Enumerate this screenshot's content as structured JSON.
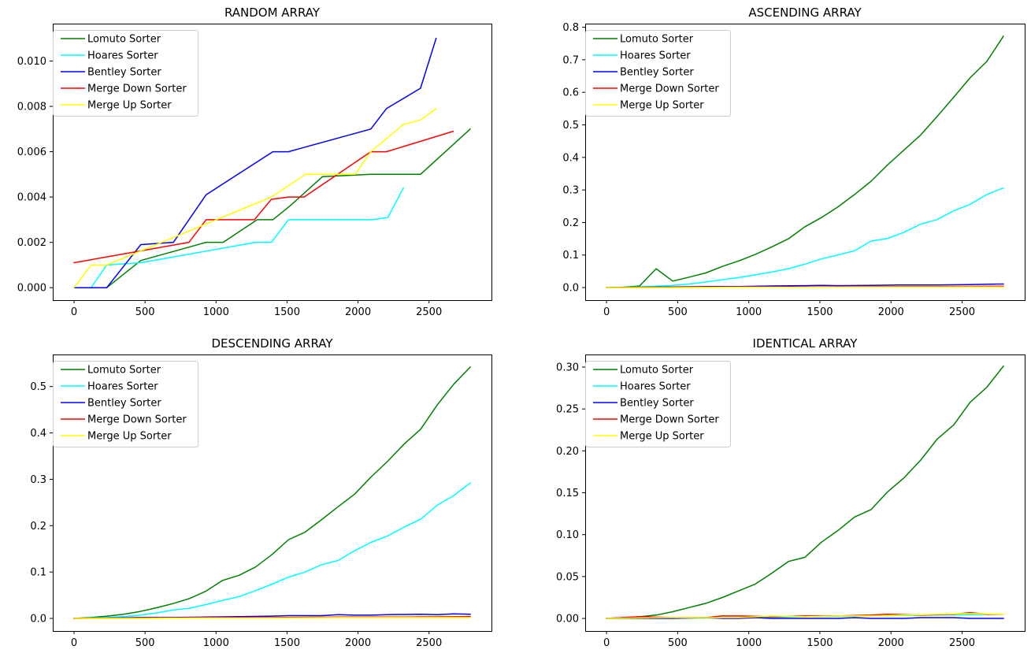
{
  "figure": {
    "background": "#ffffff"
  },
  "chart_data": [
    {
      "type": "line",
      "title": "RANDOM ARRAY",
      "xlabel": "",
      "ylabel": "",
      "xlim": [
        -150,
        2940
      ],
      "ylim": [
        -0.00055,
        0.01165
      ],
      "xticks": [
        0,
        500,
        1000,
        1500,
        2000,
        2500
      ],
      "xticklabels": [
        "0",
        "500",
        "1000",
        "1500",
        "2000",
        "2500"
      ],
      "yticks": [
        0,
        0.002,
        0.004,
        0.006,
        0.008,
        0.01
      ],
      "yticklabels": [
        "0.000",
        "0.002",
        "0.004",
        "0.006",
        "0.008",
        "0.010"
      ],
      "legend": "upper left",
      "grid": false,
      "series": [
        {
          "name": "Lomuto Sorter",
          "color": "#008000",
          "x": [
            0,
            230,
            470,
            930,
            1050,
            1290,
            1400,
            1520,
            1750,
            2090,
            2440,
            2790
          ],
          "y": [
            0,
            0,
            0.0012,
            0.002,
            0.002,
            0.003,
            0.003,
            0.0036,
            0.0049,
            0.005,
            0.005,
            0.007
          ]
        },
        {
          "name": "Hoares Sorter",
          "color": "#00ffff",
          "x": [
            0,
            120,
            230,
            470,
            1280,
            1390,
            1510,
            2100,
            2210,
            2320
          ],
          "y": [
            0,
            0,
            0.001,
            0.0011,
            0.002,
            0.002,
            0.003,
            0.003,
            0.0031,
            0.0044
          ]
        },
        {
          "name": "Bentley Sorter",
          "color": "#0000ff",
          "x": [
            0,
            230,
            470,
            700,
            930,
            1400,
            1510,
            2090,
            2200,
            2440,
            2550
          ],
          "y": [
            0,
            0,
            0.0019,
            0.002,
            0.0041,
            0.006,
            0.006,
            0.007,
            0.0079,
            0.0088,
            0.011
          ]
        },
        {
          "name": "Merge Down Sorter",
          "color": "#ff0000",
          "x": [
            0,
            810,
            930,
            1270,
            1390,
            1510,
            1620,
            2090,
            2200,
            2670
          ],
          "y": [
            0.0011,
            0.002,
            0.003,
            0.003,
            0.0039,
            0.004,
            0.004,
            0.006,
            0.006,
            0.0069
          ]
        },
        {
          "name": "Merge Up Sorter",
          "color": "#ffff00",
          "x": [
            0,
            120,
            230,
            1390,
            1630,
            1980,
            2090,
            2320,
            2440,
            2550
          ],
          "y": [
            0,
            0.001,
            0.001,
            0.004,
            0.005,
            0.005,
            0.006,
            0.0072,
            0.0074,
            0.0079
          ]
        }
      ]
    },
    {
      "type": "line",
      "title": "ASCENDING ARRAY",
      "xlabel": "",
      "ylabel": "",
      "xlim": [
        -150,
        2940
      ],
      "ylim": [
        -0.0386,
        0.811
      ],
      "xticks": [
        0,
        500,
        1000,
        1500,
        2000,
        2500
      ],
      "xticklabels": [
        "0",
        "500",
        "1000",
        "1500",
        "2000",
        "2500"
      ],
      "yticks": [
        0,
        0.1,
        0.2,
        0.3,
        0.4,
        0.5,
        0.6,
        0.7,
        0.8
      ],
      "yticklabels": [
        "0.0",
        "0.1",
        "0.2",
        "0.3",
        "0.4",
        "0.5",
        "0.6",
        "0.7",
        "0.8"
      ],
      "legend": "upper left",
      "grid": false,
      "series": [
        {
          "name": "Lomuto Sorter",
          "color": "#008000",
          "x": [
            0,
            116,
            232,
            349,
            465,
            581,
            697,
            814,
            930,
            1046,
            1162,
            1279,
            1395,
            1511,
            1627,
            1744,
            1860,
            1976,
            2092,
            2209,
            2325,
            2441,
            2557,
            2674,
            2790
          ],
          "y": [
            0,
            0.001,
            0.005,
            0.058,
            0.02,
            0.032,
            0.045,
            0.065,
            0.082,
            0.102,
            0.125,
            0.15,
            0.187,
            0.215,
            0.248,
            0.286,
            0.327,
            0.377,
            0.423,
            0.469,
            0.526,
            0.585,
            0.645,
            0.695,
            0.772
          ]
        },
        {
          "name": "Hoares Sorter",
          "color": "#00ffff",
          "x": [
            0,
            116,
            232,
            349,
            465,
            581,
            697,
            814,
            930,
            1046,
            1162,
            1279,
            1395,
            1511,
            1627,
            1744,
            1860,
            1976,
            2092,
            2209,
            2325,
            2441,
            2557,
            2674,
            2790
          ],
          "y": [
            0,
            0.001,
            0.002,
            0.004,
            0.007,
            0.011,
            0.017,
            0.024,
            0.031,
            0.039,
            0.048,
            0.058,
            0.072,
            0.088,
            0.1,
            0.113,
            0.143,
            0.151,
            0.17,
            0.195,
            0.209,
            0.236,
            0.256,
            0.286,
            0.306
          ]
        },
        {
          "name": "Bentley Sorter",
          "color": "#0000ff",
          "x": [
            0,
            232,
            465,
            697,
            930,
            1162,
            1395,
            1511,
            1627,
            1860,
            2092,
            2325,
            2557,
            2790
          ],
          "y": [
            0,
            0.001,
            0.002,
            0.003,
            0.003,
            0.005,
            0.006,
            0.007,
            0.006,
            0.007,
            0.008,
            0.008,
            0.009,
            0.011
          ]
        },
        {
          "name": "Merge Down Sorter",
          "color": "#ff0000",
          "x": [
            0,
            465,
            930,
            1395,
            1860,
            2325,
            2790
          ],
          "y": [
            0,
            0.001,
            0.002,
            0.002,
            0.003,
            0.003,
            0.004
          ]
        },
        {
          "name": "Merge Up Sorter",
          "color": "#ffff00",
          "x": [
            0,
            465,
            930,
            1395,
            1860,
            2325,
            2790
          ],
          "y": [
            0,
            0,
            0.001,
            0.001,
            0.002,
            0.002,
            0.002
          ]
        }
      ]
    },
    {
      "type": "line",
      "title": "DESCENDING ARRAY",
      "xlabel": "",
      "ylabel": "",
      "xlim": [
        -150,
        2940
      ],
      "ylim": [
        -0.0271,
        0.5691
      ],
      "xticks": [
        0,
        500,
        1000,
        1500,
        2000,
        2500
      ],
      "xticklabels": [
        "0",
        "500",
        "1000",
        "1500",
        "2000",
        "2500"
      ],
      "yticks": [
        0,
        0.1,
        0.2,
        0.3,
        0.4,
        0.5
      ],
      "yticklabels": [
        "0.0",
        "0.1",
        "0.2",
        "0.3",
        "0.4",
        "0.5"
      ],
      "legend": "upper left",
      "grid": false,
      "series": [
        {
          "name": "Lomuto Sorter",
          "color": "#008000",
          "x": [
            0,
            116,
            232,
            349,
            465,
            581,
            697,
            814,
            930,
            1046,
            1162,
            1279,
            1395,
            1511,
            1627,
            1744,
            1860,
            1976,
            2092,
            2209,
            2325,
            2441,
            2557,
            2674,
            2790
          ],
          "y": [
            0,
            0.002,
            0.005,
            0.009,
            0.015,
            0.023,
            0.032,
            0.043,
            0.059,
            0.082,
            0.093,
            0.111,
            0.138,
            0.17,
            0.186,
            0.213,
            0.241,
            0.268,
            0.305,
            0.339,
            0.376,
            0.408,
            0.46,
            0.505,
            0.542
          ]
        },
        {
          "name": "Hoares Sorter",
          "color": "#00ffff",
          "x": [
            0,
            116,
            232,
            349,
            465,
            581,
            697,
            814,
            930,
            1046,
            1162,
            1279,
            1395,
            1511,
            1627,
            1744,
            1860,
            1976,
            2092,
            2209,
            2325,
            2441,
            2557,
            2674,
            2790
          ],
          "y": [
            0,
            0.001,
            0.002,
            0.004,
            0.007,
            0.012,
            0.018,
            0.022,
            0.03,
            0.039,
            0.047,
            0.06,
            0.074,
            0.089,
            0.1,
            0.116,
            0.125,
            0.146,
            0.164,
            0.178,
            0.197,
            0.214,
            0.244,
            0.265,
            0.292
          ]
        },
        {
          "name": "Bentley Sorter",
          "color": "#0000ff",
          "x": [
            0,
            232,
            465,
            697,
            930,
            1162,
            1395,
            1511,
            1744,
            1860,
            1976,
            2092,
            2209,
            2441,
            2557,
            2674,
            2790
          ],
          "y": [
            0,
            0.001,
            0.002,
            0.002,
            0.003,
            0.004,
            0.005,
            0.006,
            0.006,
            0.008,
            0.007,
            0.007,
            0.008,
            0.009,
            0.008,
            0.01,
            0.009
          ]
        },
        {
          "name": "Merge Down Sorter",
          "color": "#ff0000",
          "x": [
            0,
            465,
            930,
            1395,
            1860,
            2325,
            2790
          ],
          "y": [
            0,
            0.001,
            0.002,
            0.002,
            0.003,
            0.003,
            0.004
          ]
        },
        {
          "name": "Merge Up Sorter",
          "color": "#ffff00",
          "x": [
            0,
            465,
            930,
            1395,
            1860,
            2325,
            2790
          ],
          "y": [
            0,
            0,
            0.001,
            0.001,
            0.002,
            0.002,
            0.002
          ]
        }
      ]
    },
    {
      "type": "line",
      "title": "IDENTICAL ARRAY",
      "xlabel": "",
      "ylabel": "",
      "xlim": [
        -150,
        2940
      ],
      "ylim": [
        -0.015,
        0.315
      ],
      "xticks": [
        0,
        500,
        1000,
        1500,
        2000,
        2500
      ],
      "xticklabels": [
        "0",
        "500",
        "1000",
        "1500",
        "2000",
        "2500"
      ],
      "yticks": [
        0,
        0.05,
        0.1,
        0.15,
        0.2,
        0.25,
        0.3
      ],
      "yticklabels": [
        "0.00",
        "0.05",
        "0.10",
        "0.15",
        "0.20",
        "0.25",
        "0.30"
      ],
      "legend": "upper left",
      "grid": false,
      "series": [
        {
          "name": "Lomuto Sorter",
          "color": "#008000",
          "x": [
            0,
            116,
            232,
            349,
            465,
            581,
            697,
            814,
            930,
            1046,
            1162,
            1279,
            1395,
            1511,
            1627,
            1744,
            1860,
            1976,
            2092,
            2209,
            2325,
            2441,
            2557,
            2674,
            2790
          ],
          "y": [
            0,
            0.001,
            0.002,
            0.004,
            0.008,
            0.013,
            0.018,
            0.025,
            0.033,
            0.041,
            0.054,
            0.068,
            0.073,
            0.091,
            0.105,
            0.121,
            0.13,
            0.151,
            0.168,
            0.189,
            0.214,
            0.231,
            0.258,
            0.276,
            0.301
          ]
        },
        {
          "name": "Hoares Sorter",
          "color": "#00ffff",
          "x": [
            0,
            465,
            930,
            1395,
            1860,
            2325,
            2790
          ],
          "y": [
            0,
            0,
            0.001,
            0.002,
            0.003,
            0.004,
            0.005
          ]
        },
        {
          "name": "Bentley Sorter",
          "color": "#0000ff",
          "x": [
            0,
            232,
            465,
            697,
            814,
            930,
            1046,
            1162,
            1395,
            1511,
            1627,
            1744,
            1860,
            1976,
            2092,
            2209,
            2325,
            2441,
            2557,
            2674,
            2790
          ],
          "y": [
            0,
            0,
            0,
            0.001,
            0,
            0,
            0.001,
            0,
            0,
            0,
            0,
            0.001,
            0,
            0,
            0,
            0.001,
            0.001,
            0.001,
            0,
            0,
            0
          ]
        },
        {
          "name": "Merge Down Sorter",
          "color": "#ff0000",
          "x": [
            0,
            232,
            465,
            697,
            814,
            930,
            1162,
            1395,
            1627,
            1860,
            1976,
            2209,
            2441,
            2557,
            2674,
            2790
          ],
          "y": [
            0,
            0.002,
            0.001,
            0.001,
            0.003,
            0.003,
            0.002,
            0.003,
            0.003,
            0.004,
            0.005,
            0.004,
            0.005,
            0.007,
            0.005,
            0.005
          ]
        },
        {
          "name": "Merge Up Sorter",
          "color": "#ffff00",
          "x": [
            0,
            465,
            930,
            1162,
            1395,
            1627,
            1860,
            2092,
            2325,
            2557,
            2790
          ],
          "y": [
            0,
            0.001,
            0.001,
            0.003,
            0.002,
            0.003,
            0.003,
            0.004,
            0.005,
            0.006,
            0.005
          ]
        }
      ]
    }
  ]
}
